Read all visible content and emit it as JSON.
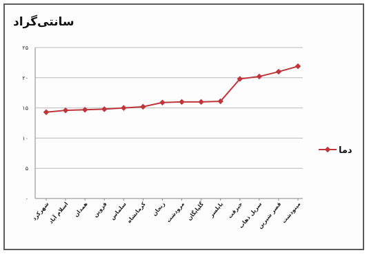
{
  "chart_data": {
    "type": "line",
    "title": "سانتی‌گراد",
    "xlabel": "",
    "ylabel": "",
    "ylim": [
      0,
      25
    ],
    "yticks": [
      "۰",
      "۵",
      "۱۰",
      "۱۵",
      "۲۰",
      "۲۵"
    ],
    "grid": true,
    "legend_position": "right",
    "categories": [
      "شهرکرد",
      "اسلام آباد",
      "همدان",
      "قزوین",
      "سلماس",
      "کرمانشاه",
      "زنجان",
      "مرودشت",
      "گلپایگان",
      "بابلسر",
      "جیرفت",
      "سرپل ذهاب",
      "قصر شیرین",
      "مینودشت"
    ],
    "series": [
      {
        "name": "دما",
        "color": "#c0353b",
        "values": [
          14.3,
          14.6,
          14.7,
          14.8,
          15.0,
          15.2,
          15.9,
          16.0,
          16.0,
          16.1,
          19.8,
          20.2,
          21.0,
          21.9
        ]
      }
    ]
  }
}
